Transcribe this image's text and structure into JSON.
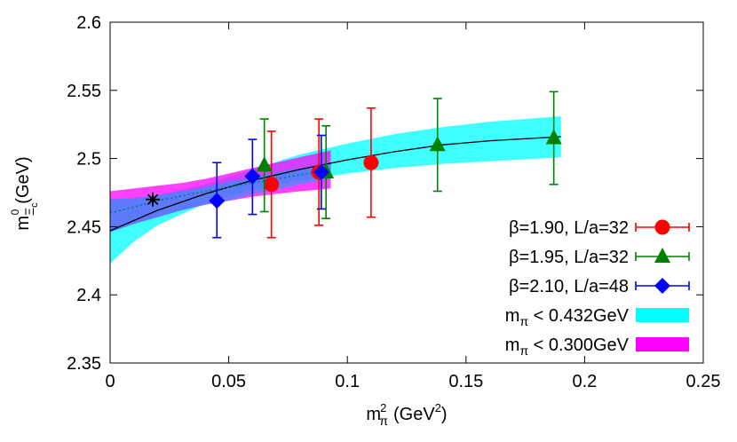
{
  "chart_data": {
    "type": "scatter",
    "xlim": [
      0,
      0.25
    ],
    "ylim": [
      2.35,
      2.6
    ],
    "xticks": [
      0,
      0.05,
      0.1,
      0.15,
      0.2,
      0.25
    ],
    "yticks": [
      2.35,
      2.4,
      2.45,
      2.5,
      2.55,
      2.6
    ],
    "xtick_labels": [
      "0",
      "0.05",
      "0.1",
      "0.15",
      "0.2",
      "0.25"
    ],
    "ytick_labels": [
      "2.35",
      "2.4",
      "2.45",
      "2.5",
      "2.55",
      "2.6"
    ],
    "xlabel": {
      "base": "m",
      "sub": "π",
      "sup": "2",
      "unit": "(GeV",
      "unit_sup": "2",
      "unit_close": ")"
    },
    "ylabel": {
      "base": "m",
      "sub": "Ξ",
      "subsub": "c",
      "sup": "0",
      "unit": "(GeV)"
    },
    "series": [
      {
        "name": "β=1.90, L/a=32",
        "marker": "circle",
        "color": "#ff0000",
        "err_color": "#ff0000",
        "points": [
          {
            "x": 0.068,
            "y": 2.481,
            "lo": 2.442,
            "hi": 2.52
          },
          {
            "x": 0.088,
            "y": 2.49,
            "lo": 2.451,
            "hi": 2.529
          },
          {
            "x": 0.11,
            "y": 2.497,
            "lo": 2.457,
            "hi": 2.537
          }
        ]
      },
      {
        "name": "β=1.95, L/a=32",
        "marker": "triangle",
        "color": "#008000",
        "err_color": "#008000",
        "points": [
          {
            "x": 0.065,
            "y": 2.495,
            "lo": 2.461,
            "hi": 2.529
          },
          {
            "x": 0.091,
            "y": 2.49,
            "lo": 2.456,
            "hi": 2.524
          },
          {
            "x": 0.138,
            "y": 2.51,
            "lo": 2.476,
            "hi": 2.544
          },
          {
            "x": 0.187,
            "y": 2.515,
            "lo": 2.481,
            "hi": 2.549
          }
        ]
      },
      {
        "name": "β=2.10, L/a=48",
        "marker": "diamond",
        "color": "#0000ff",
        "err_color": "#0000ff",
        "points": [
          {
            "x": 0.045,
            "y": 2.469,
            "lo": 2.442,
            "hi": 2.497
          },
          {
            "x": 0.06,
            "y": 2.487,
            "lo": 2.459,
            "hi": 2.514
          },
          {
            "x": 0.089,
            "y": 2.49,
            "lo": 2.463,
            "hi": 2.517
          }
        ]
      }
    ],
    "bands": [
      {
        "name_base": "m",
        "name_sub": "π",
        "name_rest": " < 0.432GeV",
        "color": "#00ffff",
        "x": [
          0,
          0.01,
          0.02,
          0.04,
          0.06,
          0.08,
          0.1,
          0.12,
          0.14,
          0.16,
          0.19
        ],
        "lo": [
          2.423,
          2.439,
          2.451,
          2.467,
          2.477,
          2.484,
          2.489,
          2.493,
          2.496,
          2.498,
          2.501
        ],
        "hi": [
          2.47,
          2.471,
          2.473,
          2.481,
          2.492,
          2.503,
          2.511,
          2.518,
          2.523,
          2.527,
          2.531
        ]
      },
      {
        "name_base": "m",
        "name_sub": "π",
        "name_rest": " < 0.300GeV",
        "color": "#ff00ff",
        "x": [
          0,
          0.01,
          0.02,
          0.03,
          0.04,
          0.05,
          0.06,
          0.07,
          0.08,
          0.093
        ],
        "lo": [
          2.446,
          2.452,
          2.457,
          2.462,
          2.466,
          2.469,
          2.472,
          2.474,
          2.476,
          2.478
        ],
        "hi": [
          2.476,
          2.478,
          2.48,
          2.482,
          2.485,
          2.489,
          2.493,
          2.497,
          2.501,
          2.506
        ]
      },
      {
        "name_base": "",
        "name_sub": "",
        "name_rest": "",
        "color": "#00aaff",
        "x": [
          0,
          0.01,
          0.02,
          0.03,
          0.04,
          0.05,
          0.06,
          0.07,
          0.08,
          0.093
        ],
        "lo": [
          2.446,
          2.452,
          2.457,
          2.462,
          2.466,
          2.469,
          2.474,
          2.477,
          2.481,
          2.485
        ],
        "hi": [
          2.47,
          2.471,
          2.473,
          2.476,
          2.479,
          2.483,
          2.486,
          2.49,
          2.493,
          2.496
        ]
      }
    ],
    "fit_lines": [
      {
        "style": "solid",
        "color": "#000000",
        "x": [
          0,
          0.02,
          0.04,
          0.06,
          0.08,
          0.1,
          0.12,
          0.14,
          0.16,
          0.19
        ],
        "y": [
          2.447,
          2.462,
          2.474,
          2.484,
          2.492,
          2.499,
          2.505,
          2.51,
          2.513,
          2.516
        ]
      },
      {
        "style": "dotted",
        "color": "#008080",
        "x": [
          0,
          0.02,
          0.04,
          0.06,
          0.08,
          0.093
        ],
        "y": [
          2.46,
          2.469,
          2.476,
          2.482,
          2.488,
          2.492
        ]
      }
    ],
    "physical_point": {
      "marker": "asterisk",
      "color": "#000000",
      "x": 0.018,
      "y": 2.47
    },
    "legend_position": "bottom-right"
  }
}
